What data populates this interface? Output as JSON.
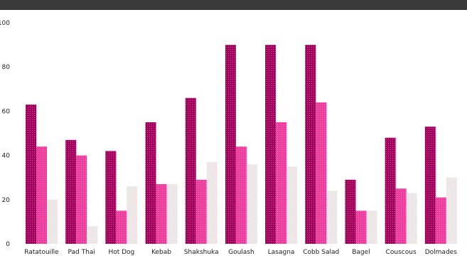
{
  "chart_data": {
    "type": "bar",
    "title": "",
    "xlabel": "",
    "ylabel": "",
    "ylim": [
      0,
      100
    ],
    "y_ticks": [
      "0",
      "20",
      "40",
      "60",
      "80",
      "100"
    ],
    "categories": [
      "Ratatouille",
      "Pad Thai",
      "Hot Dog",
      "Kebab",
      "Shakshuka",
      "Goulash",
      "Lasagna",
      "Cobb Salad",
      "Bagel",
      "Couscous",
      "Dolmades"
    ],
    "series": [
      {
        "name": "",
        "color": "#a3005e",
        "pattern": "dots",
        "values": [
          63,
          47,
          42,
          55,
          66,
          90,
          90,
          90,
          29,
          48,
          53
        ],
        "labels": [
          "",
          "",
          "",
          "",
          "",
          "",
          "",
          "",
          "",
          "",
          ""
        ]
      },
      {
        "name": "",
        "color": "#f03c9c",
        "pattern": "dots",
        "values": [
          44,
          40,
          15,
          27,
          29,
          44,
          55,
          64,
          15,
          25,
          21
        ],
        "labels": [
          "",
          "",
          "",
          "",
          "",
          "",
          "",
          "",
          "",
          "",
          ""
        ]
      },
      {
        "name": "",
        "color": "#ece6e6",
        "pattern": "dots",
        "values": [
          20,
          8,
          26,
          27,
          37,
          36,
          35,
          24,
          15,
          23,
          30
        ],
        "labels": [
          "",
          "",
          "",
          "",
          "",
          "",
          "",
          "",
          "",
          "",
          ""
        ]
      }
    ],
    "legend_position": "top-left",
    "grid": false
  }
}
